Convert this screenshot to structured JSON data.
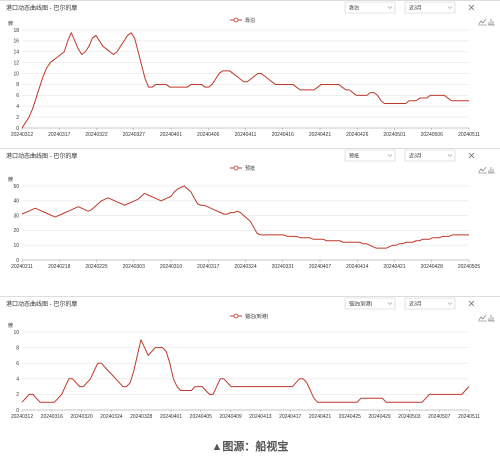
{
  "panels": [
    {
      "title": "港口动态曲线图 - 巴尔的摩",
      "metric_select": "靠泊",
      "range_select": "近3月",
      "legend": "靠泊",
      "unit": "艘",
      "y_ticks": [
        "0",
        "2",
        "4",
        "6",
        "8",
        "10",
        "12",
        "14",
        "16",
        "18"
      ],
      "x_ticks": [
        "20240312",
        "20240317",
        "20240322",
        "20240327",
        "20240401",
        "20240406",
        "20240411",
        "20240416",
        "20240421",
        "20240426",
        "20240501",
        "20240506",
        "20240511"
      ]
    },
    {
      "title": "港口动态曲线图 - 巴尔的摩",
      "metric_select": "预抵",
      "range_select": "近3月",
      "legend": "预抵",
      "unit": "艘",
      "y_ticks": [
        "0",
        "10",
        "20",
        "30",
        "40",
        "50"
      ],
      "x_ticks": [
        "20240211",
        "20240218",
        "20240225",
        "20240303",
        "20240310",
        "20240317",
        "20240324",
        "20240331",
        "20240407",
        "20240414",
        "20240421",
        "20240428",
        "20240505"
      ]
    },
    {
      "title": "港口动态曲线图 - 巴尔的摩",
      "metric_select": "锚泊(到港)",
      "range_select": "近3月",
      "legend": "锚泊(到港)",
      "unit": "艘",
      "y_ticks": [
        "0",
        "2",
        "4",
        "6",
        "8",
        "10"
      ],
      "x_ticks": [
        "20240312",
        "20240316",
        "20240320",
        "20240324",
        "20240328",
        "20240401",
        "20240405",
        "20240409",
        "20240413",
        "20240417",
        "20240421",
        "20240425",
        "20240429",
        "20240503",
        "20240507",
        "20240511"
      ]
    }
  ],
  "chart_data": [
    {
      "type": "line",
      "series": [
        {
          "name": "靠泊",
          "color": "#c0392b",
          "values": [
            0,
            1,
            2,
            3.5,
            5.5,
            7.5,
            9.5,
            11,
            12,
            12.5,
            13,
            13.5,
            14,
            16,
            17.5,
            16,
            14.5,
            13.5,
            14,
            15,
            16.5,
            17,
            16,
            15,
            14.5,
            14,
            13.5,
            14,
            15,
            16,
            17,
            17.5,
            16.5,
            14,
            11.5,
            9,
            7.5,
            7.5,
            8,
            8,
            8,
            8,
            7.5,
            7.5,
            7.5,
            7.5,
            7.5,
            7.5,
            8,
            8,
            8,
            8,
            7.5,
            7.5,
            8,
            9,
            10,
            10.5,
            10.5,
            10.5,
            10,
            9.5,
            9,
            8.5,
            8.5,
            9,
            9.5,
            10,
            10,
            9.5,
            9,
            8.5,
            8,
            8,
            8,
            8,
            8,
            8,
            7.5,
            7,
            7,
            7,
            7,
            7,
            7.5,
            8,
            8,
            8,
            8,
            8,
            8,
            7.5,
            7,
            7,
            6.5,
            6,
            6,
            6,
            6,
            6.5,
            6.5,
            6,
            5,
            4.5,
            4.5,
            4.5,
            4.5,
            4.5,
            4.5,
            4.5,
            5,
            5,
            5,
            5.5,
            5.5,
            5.5,
            6,
            6,
            6,
            6,
            6,
            5.5,
            5,
            5,
            5,
            5,
            5,
            5
          ]
        }
      ],
      "ylim": [
        0,
        18
      ]
    },
    {
      "type": "line",
      "series": [
        {
          "name": "预抵",
          "color": "#c0392b",
          "values": [
            31,
            32,
            33,
            34,
            35,
            34,
            33,
            32,
            31,
            30,
            29,
            30,
            31,
            32,
            33,
            34,
            35,
            36,
            35,
            34,
            33,
            34,
            36,
            38,
            40,
            41,
            42,
            41,
            40,
            39,
            38,
            37,
            38,
            39,
            40,
            41,
            43,
            45,
            44,
            43,
            42,
            41,
            40,
            41,
            42,
            43,
            46,
            48,
            49,
            50,
            48,
            46,
            42,
            38,
            37,
            37,
            36,
            35,
            34,
            33,
            32,
            31,
            31,
            32,
            32,
            33,
            32,
            30,
            28,
            26,
            22,
            18,
            17,
            17,
            17,
            17,
            17,
            17,
            17,
            17,
            16,
            16,
            16,
            16,
            15,
            15,
            15,
            15,
            14,
            14,
            14,
            14,
            13,
            13,
            13,
            13,
            13,
            12,
            12,
            12,
            12,
            12,
            12,
            11,
            11,
            10,
            9,
            8,
            8,
            8,
            8,
            9,
            10,
            10,
            11,
            11,
            12,
            12,
            12,
            13,
            13,
            14,
            14,
            14,
            15,
            15,
            15,
            16,
            16,
            16,
            17,
            17,
            17,
            17,
            17,
            17
          ]
        }
      ],
      "ylim": [
        0,
        50
      ]
    },
    {
      "type": "line",
      "series": [
        {
          "name": "锚泊(到港)",
          "color": "#c0392b",
          "values": [
            1,
            1.5,
            2,
            2,
            1.5,
            1,
            1,
            1,
            1,
            1,
            1.5,
            2,
            3,
            4,
            4,
            3.5,
            3,
            3,
            3.5,
            4,
            5,
            6,
            6,
            5.5,
            5,
            4.5,
            4,
            3.5,
            3,
            3,
            3.5,
            5,
            7,
            9,
            8,
            7,
            7.5,
            8,
            8,
            8,
            7.5,
            6,
            4,
            3,
            2.5,
            2.5,
            2.5,
            2.5,
            3,
            3,
            3,
            2.5,
            2,
            2,
            3,
            4,
            4,
            3.5,
            3,
            3,
            3,
            3,
            3,
            3,
            3,
            3,
            3,
            3,
            3,
            3,
            3,
            3,
            3,
            3,
            3,
            3,
            3.5,
            4,
            4,
            3.5,
            2.5,
            1.5,
            1,
            1,
            1,
            1,
            1,
            1,
            1,
            1,
            1,
            1,
            1,
            1,
            1.5,
            1.5,
            1.5,
            1.5,
            1.5,
            1.5,
            1.5,
            1,
            1,
            1,
            1,
            1,
            1,
            1,
            1,
            1,
            1,
            1,
            1.5,
            2,
            2,
            2,
            2,
            2,
            2,
            2,
            2,
            2,
            2,
            2.5,
            3
          ]
        }
      ],
      "ylim": [
        0,
        10
      ]
    }
  ],
  "caption": "▲图源：船视宝"
}
